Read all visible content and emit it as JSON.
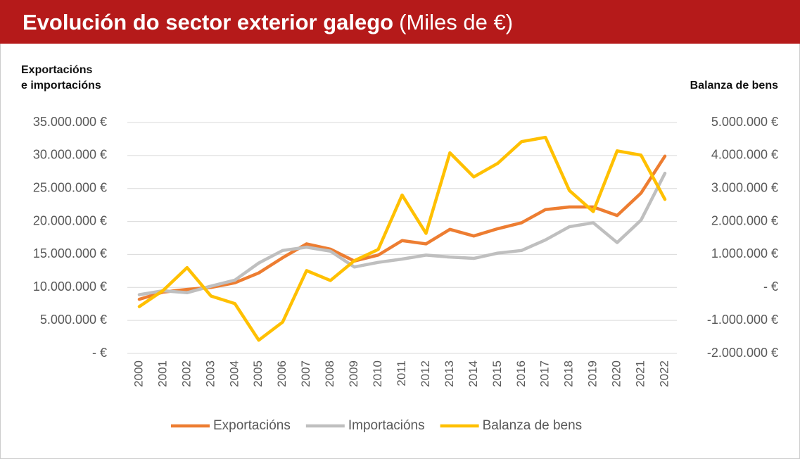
{
  "chart_data": {
    "type": "line",
    "title": "Evolución do sector exterior galego",
    "title_unit": "(Miles de €)",
    "ylabel": [
      "Exportacións",
      "e importacións"
    ],
    "y2label": "Balanza de bens",
    "categories": [
      "2000",
      "2001",
      "2002",
      "2003",
      "2004",
      "2005",
      "2006",
      "2007",
      "2008",
      "2009",
      "2010",
      "2011",
      "2012",
      "2013",
      "2014",
      "2015",
      "2016",
      "2017",
      "2018",
      "2019",
      "2020",
      "2021",
      "2022"
    ],
    "series": [
      {
        "name": "Exportacións",
        "color": "#ed7d31",
        "values": [
          8200000,
          9300000,
          9700000,
          10000000,
          10700000,
          12200000,
          14500000,
          16600000,
          15800000,
          14000000,
          14900000,
          17100000,
          16600000,
          18800000,
          17800000,
          18900000,
          19800000,
          21800000,
          22200000,
          22200000,
          20900000,
          24300000,
          29900000
        ]
      },
      {
        "name": "Importacións",
        "color": "#bfbfbf",
        "values": [
          8900000,
          9500000,
          9200000,
          10200000,
          11100000,
          13700000,
          15600000,
          16100000,
          15500000,
          13100000,
          13800000,
          14300000,
          14900000,
          14600000,
          14400000,
          15200000,
          15600000,
          17200000,
          19200000,
          19800000,
          16800000,
          20200000,
          27300000
        ]
      },
      {
        "name": "Balanza de bens",
        "color": "#ffc000",
        "axis": "y2",
        "values": [
          -580000,
          -90000,
          600000,
          -260000,
          -490000,
          -1600000,
          -1050000,
          510000,
          210000,
          810000,
          1150000,
          2800000,
          1640000,
          4080000,
          3350000,
          3760000,
          4420000,
          4550000,
          2940000,
          2300000,
          4140000,
          4010000,
          2670000
        ]
      }
    ],
    "ylim": [
      0,
      35000000
    ],
    "yticks": [
      {
        "value": 0,
        "label": "-   €"
      },
      {
        "value": 5000000,
        "label": "5.000.000 €"
      },
      {
        "value": 10000000,
        "label": "10.000.000 €"
      },
      {
        "value": 15000000,
        "label": "15.000.000 €"
      },
      {
        "value": 20000000,
        "label": "20.000.000 €"
      },
      {
        "value": 25000000,
        "label": "25.000.000 €"
      },
      {
        "value": 30000000,
        "label": "30.000.000 €"
      },
      {
        "value": 35000000,
        "label": "35.000.000 €"
      }
    ],
    "y2lim": [
      -2000000,
      5000000
    ],
    "y2ticks": [
      {
        "value": -2000000,
        "label": "-2.000.000 €"
      },
      {
        "value": -1000000,
        "label": "-1.000.000 €"
      },
      {
        "value": 0,
        "label": "-   €"
      },
      {
        "value": 1000000,
        "label": "1.000.000 €"
      },
      {
        "value": 2000000,
        "label": "2.000.000 €"
      },
      {
        "value": 3000000,
        "label": "3.000.000 €"
      },
      {
        "value": 4000000,
        "label": "4.000.000 €"
      },
      {
        "value": 5000000,
        "label": "5.000.000 €"
      }
    ],
    "grid": true,
    "legend": "bottom"
  }
}
